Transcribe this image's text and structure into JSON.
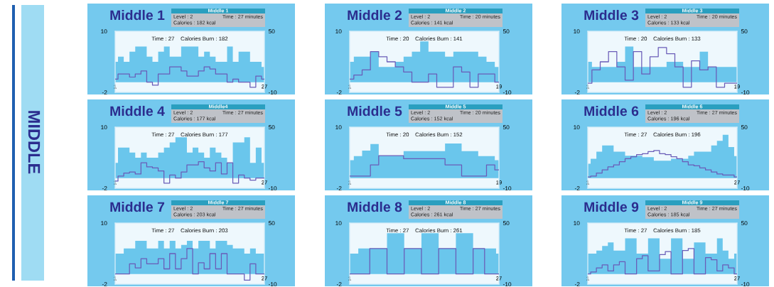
{
  "chart_data": [
    {
      "type": "other",
      "title": "MIDDLE"
    },
    {
      "type": "step",
      "title": "Middle 1",
      "annotations": [
        "Middle 1",
        "Level : 2",
        "Time : 27 minutes",
        "Calories : 182 kcal",
        "Time : 27    Calories Burn : 182"
      ],
      "x": [
        1,
        2,
        3,
        4,
        5,
        6,
        7,
        8,
        9,
        10,
        11,
        12,
        13,
        14,
        15,
        16,
        17,
        18,
        19,
        20,
        21,
        22,
        23,
        24,
        25,
        26,
        27
      ],
      "xlim": [
        1,
        27
      ],
      "xticks": [
        1,
        27
      ],
      "ylim": [
        -2,
        10
      ],
      "yticks": [
        -2,
        10
      ],
      "y2lim": [
        -10,
        50
      ],
      "y2ticks": [
        -10,
        50
      ],
      "series": [
        {
          "type": "area",
          "color": "#6ac6ec",
          "values": [
            4,
            5,
            4,
            6,
            7,
            7,
            5,
            4,
            6,
            7,
            5,
            5,
            7,
            7,
            7,
            5,
            6,
            5,
            4,
            4,
            7,
            4,
            6,
            6,
            4,
            4,
            3
          ]
        },
        {
          "type": "step",
          "axis": "y2",
          "color": "#6a5cb8",
          "values": [
            3,
            8,
            8,
            5,
            8,
            11,
            0,
            -3,
            8,
            8,
            15,
            15,
            11,
            6,
            6,
            11,
            15,
            13,
            8,
            8,
            0,
            3,
            0,
            0,
            -5,
            6,
            3
          ]
        }
      ]
    },
    {
      "type": "step",
      "title": "Middle 2",
      "annotations": [
        "Middle 2",
        "Level : 2",
        "Time : 20 minutes",
        "Calories : 141 kcal",
        "Time : 20    Calories Burn : 141"
      ],
      "x": [
        1,
        2,
        3,
        4,
        5,
        6,
        7,
        8,
        9,
        10,
        11,
        12,
        13,
        14,
        15,
        16,
        17,
        18,
        19
      ],
      "xlim": [
        1,
        19
      ],
      "xticks": [
        1,
        19
      ],
      "ylim": [
        -2,
        10
      ],
      "yticks": [
        -2,
        10
      ],
      "y2lim": [
        -10,
        50
      ],
      "y2ticks": [
        -10,
        50
      ],
      "series": [
        {
          "type": "area",
          "color": "#6ac6ec",
          "values": [
            4,
            5,
            5,
            6,
            3,
            3,
            4,
            5,
            6,
            8,
            6,
            6,
            5,
            6,
            6,
            6,
            5,
            4,
            3
          ]
        },
        {
          "type": "step",
          "axis": "y2",
          "color": "#6a5cb8",
          "values": [
            3,
            7,
            12,
            30,
            25,
            20,
            15,
            10,
            0,
            0,
            8,
            -5,
            -5,
            15,
            10,
            -5,
            8,
            8,
            0
          ]
        }
      ]
    },
    {
      "type": "step",
      "title": "Middle 3",
      "annotations": [
        "Middle 3",
        "Level : 2",
        "Time : 20 minutes",
        "Calories : 133 kcal",
        "Time : 20    Calories Burn : 133"
      ],
      "x": [
        1,
        2,
        3,
        4,
        5,
        6,
        7,
        8,
        9,
        10,
        11,
        12,
        13,
        14,
        15,
        16,
        17,
        18,
        19
      ],
      "xlim": [
        1,
        19
      ],
      "xticks": [
        1,
        19
      ],
      "ylim": [
        -2,
        10
      ],
      "yticks": [
        -2,
        10
      ],
      "y2lim": [
        -10,
        50
      ],
      "y2ticks": [
        -10,
        50
      ],
      "series": [
        {
          "type": "area",
          "color": "#6ac6ec",
          "values": [
            4,
            3,
            3,
            3,
            4,
            7,
            3,
            3,
            3,
            3,
            4,
            4,
            3,
            3,
            6,
            3,
            3,
            3,
            3
          ]
        },
        {
          "type": "step",
          "axis": "y2",
          "color": "#6a5cb8",
          "values": [
            -1,
            12,
            20,
            30,
            15,
            2,
            30,
            8,
            25,
            34,
            28,
            15,
            -5,
            21,
            12,
            15,
            -5,
            -1,
            -1
          ]
        }
      ]
    },
    {
      "type": "step",
      "title": "Middle 4",
      "annotations": [
        "Middle4",
        "Level : 2",
        "Time : 27 minutes",
        "Calories : 177 kcal",
        "Time : 27    Calories Burn : 177"
      ],
      "x": [
        1,
        2,
        3,
        4,
        5,
        6,
        7,
        8,
        9,
        10,
        11,
        12,
        13,
        14,
        15,
        16,
        17,
        18,
        19,
        20,
        21,
        22,
        23,
        24,
        25,
        26,
        27
      ],
      "xlim": [
        1,
        27
      ],
      "xticks": [
        1,
        27
      ],
      "ylim": [
        -2,
        10
      ],
      "yticks": [
        -2,
        10
      ],
      "y2lim": [
        -10,
        50
      ],
      "y2ticks": [
        -10,
        50
      ],
      "series": [
        {
          "type": "area",
          "color": "#6ac6ec",
          "values": [
            3,
            6,
            6,
            5,
            4,
            5,
            4,
            4,
            5,
            6,
            7,
            8,
            8,
            5,
            6,
            5,
            4,
            6,
            5,
            4,
            3,
            7,
            7,
            8,
            3,
            6,
            3
          ]
        },
        {
          "type": "step",
          "axis": "y2",
          "color": "#6a5cb8",
          "values": [
            -3,
            2,
            5,
            6,
            4,
            15,
            11,
            10,
            7,
            -5,
            3,
            0,
            6,
            13,
            13,
            16,
            10,
            7,
            15,
            4,
            15,
            -5,
            3,
            0,
            -2,
            0,
            0
          ]
        }
      ]
    },
    {
      "type": "step",
      "title": "Middle 5",
      "annotations": [
        "Middle 5",
        "Level : 2",
        "Time : 20 minutes",
        "Calories : 152 kcal",
        "Time : 20    Calories Burn : 152"
      ],
      "x": [
        1,
        2,
        3,
        4,
        5,
        6,
        7,
        8,
        9,
        10,
        11,
        12,
        13,
        14,
        15,
        16,
        17,
        18,
        19
      ],
      "xlim": [
        1,
        19
      ],
      "xticks": [
        1,
        19
      ],
      "ylim": [
        -2,
        10
      ],
      "yticks": [
        -2,
        10
      ],
      "y2lim": [
        -10,
        50
      ],
      "y2ticks": [
        -10,
        50
      ],
      "series": [
        {
          "type": "area",
          "color": "#6ac6ec",
          "values": [
            3.5,
            4.3,
            5.4,
            6.7,
            4.4,
            4.4,
            4.4,
            5.3,
            5.3,
            5.3,
            5.3,
            5.3,
            6.8,
            6.8,
            5.3,
            5.3,
            4.3,
            4.3,
            3.5
          ]
        },
        {
          "type": "step",
          "axis": "y2",
          "color": "#6a5cb8",
          "values": [
            2,
            2,
            2,
            13,
            22,
            22,
            22,
            19,
            19,
            19,
            19,
            19,
            13,
            13,
            2,
            2,
            2,
            13,
            8
          ]
        }
      ]
    },
    {
      "type": "step",
      "title": "Middle 6",
      "annotations": [
        "Middle 6",
        "Level : 2",
        "Time : 27 minutes",
        "Calories : 196 kcal",
        "Time : 27    Calories Burn : 196"
      ],
      "x": [
        1,
        2,
        3,
        4,
        5,
        6,
        7,
        8,
        9,
        10,
        11,
        12,
        13,
        14,
        15,
        16,
        17,
        18,
        19,
        20,
        21,
        22,
        23,
        24,
        25,
        26,
        27
      ],
      "xlim": [
        1,
        27
      ],
      "xticks": [
        1,
        27
      ],
      "ylim": [
        -2,
        10
      ],
      "yticks": [
        -2,
        10
      ],
      "y2lim": [
        -10,
        50
      ],
      "y2ticks": [
        -10,
        50
      ],
      "series": [
        {
          "type": "area",
          "color": "#6ac6ec",
          "values": [
            2.8,
            3.8,
            5.2,
            6.4,
            6.4,
            5.2,
            5.2,
            4.4,
            4.4,
            4.4,
            4.1,
            4.1,
            3.4,
            3.4,
            3.4,
            3.8,
            3.8,
            3.8,
            4.4,
            5.2,
            5.2,
            5.2,
            6.4,
            7.3,
            8.5,
            6.1,
            4.3
          ]
        },
        {
          "type": "step",
          "axis": "y2",
          "color": "#6a5cb8",
          "values": [
            1,
            2,
            5,
            8,
            11,
            13,
            16,
            19,
            21,
            23,
            24,
            26,
            27,
            24,
            23,
            21,
            19,
            16,
            13,
            12,
            10,
            8,
            6,
            4,
            3,
            3,
            1
          ]
        }
      ]
    },
    {
      "type": "step",
      "title": "Middle 7",
      "annotations": [
        "Middle 7",
        "Level : 2",
        "Time : 27 minutes",
        "Calories : 203 kcal",
        "Time : 27    Calories Burn : 203"
      ],
      "x": [
        1,
        2,
        3,
        4,
        5,
        6,
        7,
        8,
        9,
        10,
        11,
        12,
        13,
        14,
        15,
        16,
        17,
        18,
        19,
        20,
        21,
        22,
        23,
        24,
        25,
        26,
        27
      ],
      "xlim": [
        1,
        27
      ],
      "xticks": [
        1,
        27
      ],
      "ylim": [
        -2,
        10
      ],
      "yticks": [
        -2,
        10
      ],
      "y2lim": [
        -10,
        50
      ],
      "y2ticks": [
        -10,
        50
      ],
      "series": [
        {
          "type": "area",
          "color": "#6ac6ec",
          "values": [
            4,
            4,
            5,
            5,
            6.5,
            6.5,
            5,
            5,
            6.5,
            5,
            6.5,
            5,
            5.7,
            6.5,
            5,
            6.5,
            6.5,
            5,
            6.5,
            6.5,
            5.7,
            5,
            5,
            4,
            5,
            4,
            4
          ]
        },
        {
          "type": "step",
          "axis": "y2",
          "color": "#6a5cb8",
          "values": [
            0,
            0,
            0,
            10,
            6,
            15,
            10,
            10,
            15,
            5,
            20,
            5,
            15,
            25,
            0,
            11,
            5,
            20,
            5,
            20,
            0,
            0,
            0,
            -6,
            10,
            0,
            0
          ]
        }
      ]
    },
    {
      "type": "step",
      "title": "Middle 8",
      "annotations": [
        "Middle 8",
        "Level : 2",
        "Time : 27 minutes",
        "Calories : 261 kcal",
        "Time : 27    Calories Burn : 261"
      ],
      "x": [
        1,
        2,
        3,
        4,
        5,
        6,
        7,
        8,
        9,
        10,
        11,
        12,
        13,
        14,
        15,
        16,
        17,
        18,
        19,
        20,
        21,
        22,
        23,
        24,
        25,
        26,
        27
      ],
      "xlim": [
        1,
        27
      ],
      "xticks": [
        1,
        27
      ],
      "ylim": [
        -2,
        10
      ],
      "yticks": [
        -2,
        10
      ],
      "y2lim": [
        -10,
        50
      ],
      "y2ticks": [
        -10,
        50
      ],
      "series": [
        {
          "type": "area",
          "color": "#6ac6ec",
          "values": [
            4,
            4,
            5,
            5,
            5,
            5,
            5,
            8,
            8,
            8,
            5,
            5,
            5,
            8,
            8,
            8,
            5,
            5,
            5,
            8,
            8,
            8,
            5,
            5,
            5,
            5,
            4
          ]
        },
        {
          "type": "step",
          "axis": "y2",
          "color": "#6a5cb8",
          "values": [
            0,
            0,
            0,
            0,
            25,
            25,
            25,
            0,
            0,
            0,
            25,
            25,
            25,
            0,
            0,
            0,
            25,
            25,
            25,
            0,
            0,
            0,
            25,
            25,
            0,
            0,
            0
          ]
        }
      ]
    },
    {
      "type": "step",
      "title": "Middle 9",
      "annotations": [
        "Middle 9",
        "Level : 2",
        "Time : 27 minutes",
        "Calories : 185 kcal",
        "Time : 27    Calories Burn : 185"
      ],
      "x": [
        1,
        2,
        3,
        4,
        5,
        6,
        7,
        8,
        9,
        10,
        11,
        12,
        13,
        14,
        15,
        16,
        17,
        18,
        19,
        20,
        21,
        22,
        23,
        24,
        25,
        26,
        27
      ],
      "xlim": [
        1,
        27
      ],
      "xticks": [
        1,
        27
      ],
      "ylim": [
        -2,
        10
      ],
      "yticks": [
        -2,
        10
      ],
      "y2lim": [
        -10,
        50
      ],
      "y2ticks": [
        -10,
        50
      ],
      "series": [
        {
          "type": "area",
          "color": "#6ac6ec",
          "values": [
            4,
            4,
            4.6,
            5.5,
            6.2,
            4.6,
            4.6,
            7,
            7,
            4,
            4,
            7,
            7,
            3,
            3,
            7,
            7,
            3,
            3,
            6.2,
            6.2,
            4,
            4,
            7,
            4.6,
            3,
            4
          ]
        },
        {
          "type": "step",
          "axis": "y2",
          "color": "#6a5cb8",
          "values": [
            0,
            2,
            6,
            9,
            3,
            9,
            12,
            0,
            0,
            15,
            18,
            3,
            3,
            19,
            22,
            0,
            0,
            23,
            25,
            0,
            0,
            16,
            14,
            3,
            9,
            6,
            0
          ]
        }
      ]
    }
  ]
}
